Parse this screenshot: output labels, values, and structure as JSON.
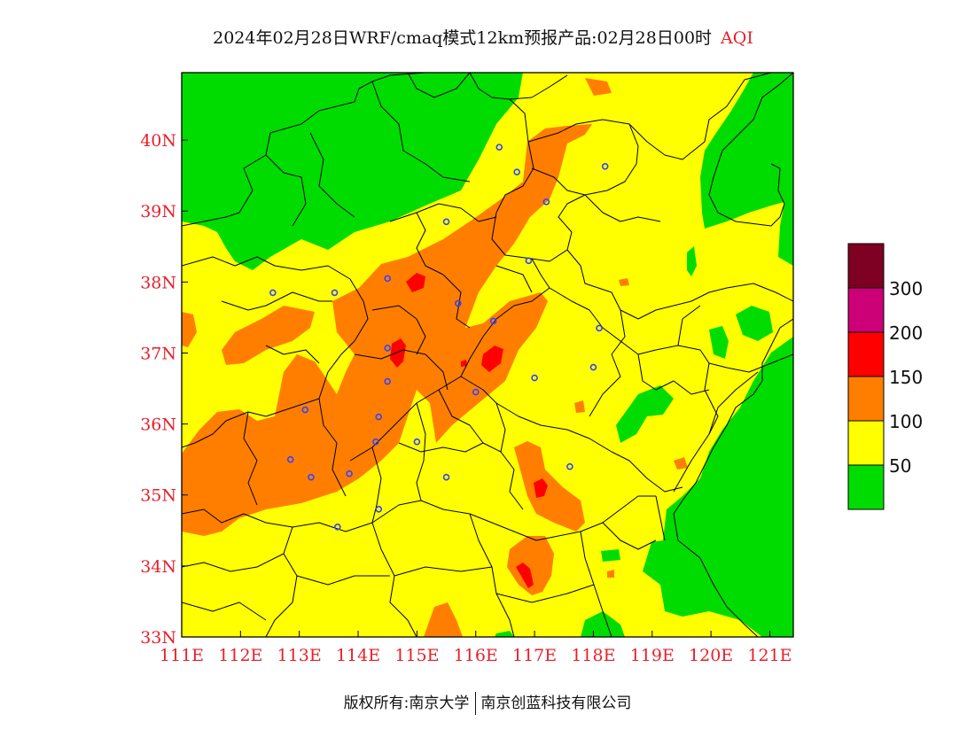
{
  "title": {
    "main": "2024年02月28日WRF/cmaq模式12km预报产品:02月28日00时",
    "suffix": "AQI"
  },
  "map": {
    "lon_range": [
      111,
      121.4
    ],
    "lat_range": [
      33,
      40.95
    ],
    "lon_ticks": [
      111,
      112,
      113,
      114,
      115,
      116,
      117,
      118,
      119,
      120,
      121
    ],
    "lat_ticks": [
      33,
      34,
      35,
      36,
      37,
      38,
      39,
      40
    ],
    "lon_tick_labels": [
      "111E",
      "112E",
      "113E",
      "114E",
      "115E",
      "116E",
      "117E",
      "118E",
      "119E",
      "120E",
      "121E"
    ],
    "lat_tick_labels": [
      "33N",
      "34N",
      "35N",
      "36N",
      "37N",
      "38N",
      "39N",
      "40N"
    ],
    "city_markers": [
      [
        116.4,
        39.9
      ],
      [
        116.7,
        39.55
      ],
      [
        118.2,
        39.63
      ],
      [
        117.2,
        39.13
      ],
      [
        115.5,
        38.85
      ],
      [
        116.9,
        38.3
      ],
      [
        114.5,
        38.05
      ],
      [
        112.55,
        37.85
      ],
      [
        113.6,
        37.85
      ],
      [
        115.7,
        37.7
      ],
      [
        116.3,
        37.45
      ],
      [
        114.5,
        37.07
      ],
      [
        118.1,
        37.35
      ],
      [
        117.0,
        36.65
      ],
      [
        118.0,
        36.8
      ],
      [
        114.5,
        36.6
      ],
      [
        116.0,
        36.45
      ],
      [
        113.1,
        36.2
      ],
      [
        114.35,
        36.1
      ],
      [
        112.85,
        35.5
      ],
      [
        114.3,
        35.75
      ],
      [
        115.0,
        35.75
      ],
      [
        117.6,
        35.4
      ],
      [
        113.2,
        35.25
      ],
      [
        113.85,
        35.3
      ],
      [
        115.5,
        35.25
      ],
      [
        114.35,
        34.8
      ],
      [
        113.65,
        34.55
      ]
    ]
  },
  "legend": {
    "items": [
      {
        "color": "#00dc00",
        "label": "50"
      },
      {
        "color": "#ffff00",
        "label": "100"
      },
      {
        "color": "#ff7e00",
        "label": "150"
      },
      {
        "color": "#ff0000",
        "label": "200"
      },
      {
        "color": "#cc0077",
        "label": "300"
      },
      {
        "color": "#7e0023",
        "label": ""
      }
    ]
  },
  "colors": {
    "good": "#00dc00",
    "moderate": "#ffff00",
    "sensitive": "#ff7e00",
    "unhealthy": "#ff0000",
    "very_unhealthy": "#cc0077",
    "hazardous": "#7e0023",
    "axis_label": "#e8202a",
    "city_marker": "#3344ff"
  },
  "footer": {
    "left": "版权所有:南京大学",
    "right": "南京创蓝科技有限公司"
  }
}
